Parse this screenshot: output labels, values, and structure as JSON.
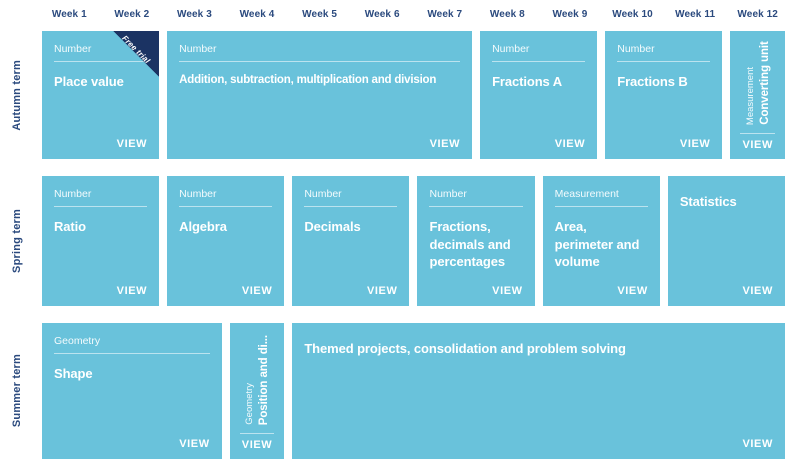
{
  "header": {
    "weeks": [
      "Week 1",
      "Week 2",
      "Week 3",
      "Week 4",
      "Week 5",
      "Week 6",
      "Week 7",
      "Week 8",
      "Week 9",
      "Week 10",
      "Week 11",
      "Week 12"
    ]
  },
  "terms": [
    {
      "label": "Autumn term",
      "cards": [
        {
          "category": "Number",
          "title": "Place value",
          "badge": "Free trial",
          "view": "VIEW",
          "weeks": "1-2"
        },
        {
          "category": "Number",
          "title": "Addition, subtraction, multiplication and division",
          "view": "VIEW",
          "weeks": "3-7"
        },
        {
          "category": "Number",
          "title": "Fractions A",
          "view": "VIEW",
          "weeks": "8-9"
        },
        {
          "category": "Number",
          "title": "Fractions B",
          "view": "VIEW",
          "weeks": "10-11"
        },
        {
          "category": "Measurement",
          "title": "Converting units",
          "view": "VIEW",
          "weeks": "12"
        }
      ]
    },
    {
      "label": "Spring term",
      "cards": [
        {
          "category": "Number",
          "title": "Ratio",
          "view": "VIEW",
          "weeks": "1-2"
        },
        {
          "category": "Number",
          "title": "Algebra",
          "view": "VIEW",
          "weeks": "3-4"
        },
        {
          "category": "Number",
          "title": "Decimals",
          "view": "VIEW",
          "weeks": "5-6"
        },
        {
          "category": "Number",
          "title": "Fractions, decimals and percentages",
          "view": "VIEW",
          "weeks": "7-8"
        },
        {
          "category": "Measurement",
          "title": "Area, perimeter and volume",
          "view": "VIEW",
          "weeks": "9-10"
        },
        {
          "title": "Statistics",
          "view": "VIEW",
          "weeks": "11-12"
        }
      ]
    },
    {
      "label": "Summer term",
      "cards": [
        {
          "category": "Geometry",
          "title": "Shape",
          "view": "VIEW",
          "weeks": "1-3"
        },
        {
          "category": "Geometry",
          "title": "Position and di...",
          "view": "VIEW",
          "weeks": "4"
        },
        {
          "title": "Themed projects, consolidation and problem solving",
          "view": "VIEW",
          "weeks": "5-12"
        }
      ]
    }
  ],
  "colors": {
    "card_blue": "#69c2db",
    "ribbon_navy": "#1b3363",
    "header_text_navy": "#2b4a7e",
    "card_text": "#ffffff",
    "page_background": "#ffffff"
  }
}
